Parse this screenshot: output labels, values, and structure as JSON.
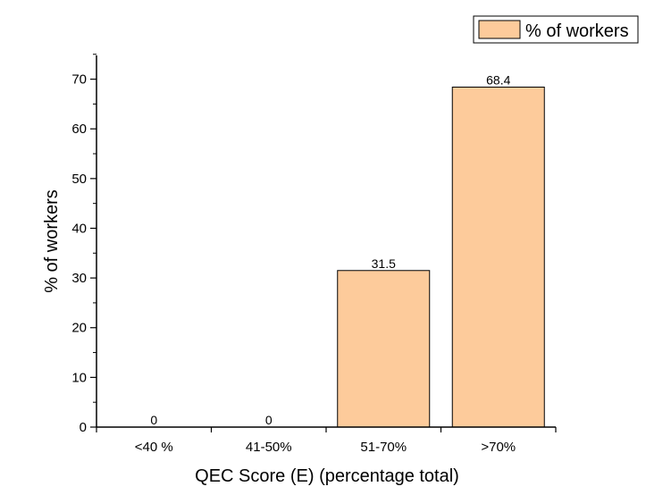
{
  "chart_data": {
    "type": "bar",
    "categories": [
      "<40 %",
      "41-50%",
      "51-70%",
      ">70%"
    ],
    "series": [
      {
        "name": "% of workers",
        "values": [
          0,
          0,
          31.5,
          68.4
        ],
        "color": "#FDCB9B"
      }
    ],
    "data_labels": [
      "0",
      "0",
      "31.5",
      "68.4"
    ],
    "xlabel": "QEC Score (E) (percentage total)",
    "ylabel": "% of workers",
    "ylim": [
      0,
      75
    ],
    "yticks": [
      0,
      10,
      20,
      30,
      40,
      50,
      60,
      70
    ],
    "grid": false,
    "legend": {
      "position": "top-right",
      "label": "% of workers"
    }
  }
}
